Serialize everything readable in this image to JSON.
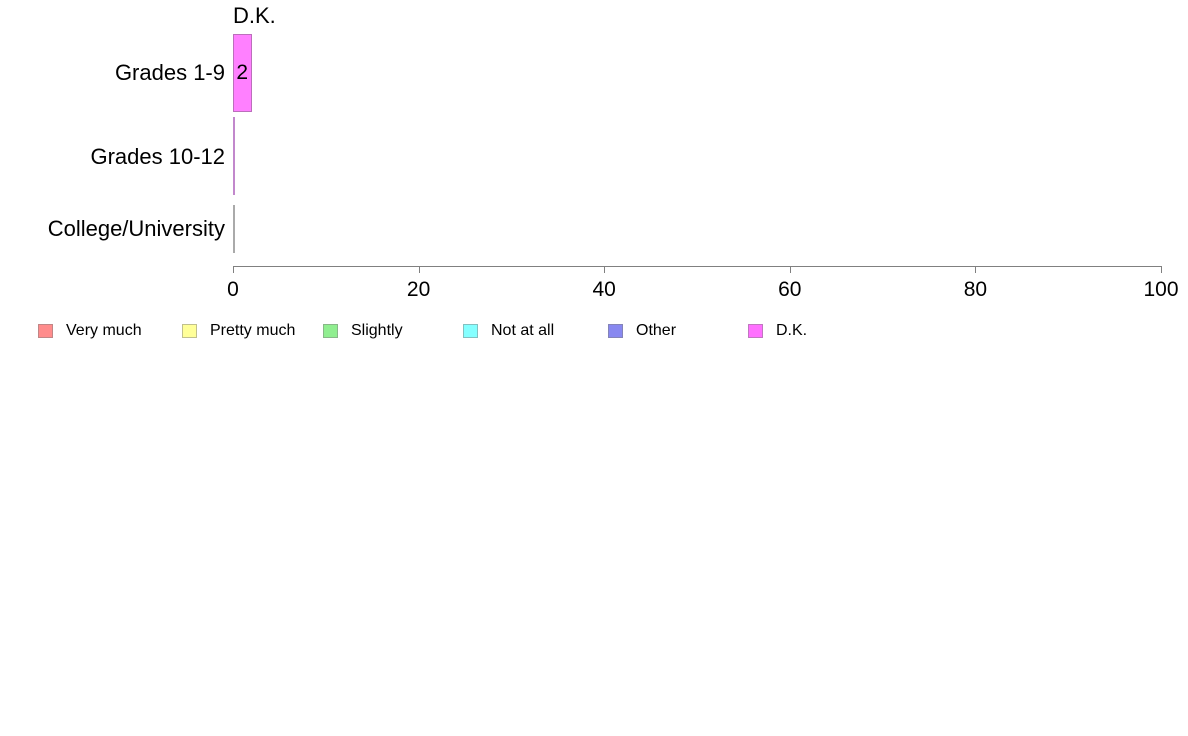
{
  "chart_data": {
    "type": "bar",
    "orientation": "horizontal",
    "title": "D.K.",
    "categories": [
      "Grades 1-9",
      "Grades 10-12",
      "College/University"
    ],
    "values": [
      2,
      0,
      0
    ],
    "value_labels": [
      "2",
      "",
      ""
    ],
    "xlabel": "",
    "ylabel": "",
    "xlim": [
      0,
      100
    ],
    "x_ticks": [
      0,
      20,
      40,
      60,
      80,
      100
    ],
    "grid": false,
    "legend_position": "bottom",
    "colors": {
      "bar_fill": "#ff80ff",
      "bar_border": "#bb6fbb",
      "zero_bar_lines": [
        "",
        "#c288cc",
        "#aaaaaa"
      ],
      "axis": "#808080",
      "text": "#000000",
      "background": "#ffffff"
    },
    "legend": [
      {
        "label": "Very much",
        "color": "#ff8c8c"
      },
      {
        "label": "Pretty much",
        "color": "#ffff99"
      },
      {
        "label": "Slightly",
        "color": "#90ee90"
      },
      {
        "label": "Not at all",
        "color": "#85ffff"
      },
      {
        "label": "Other",
        "color": "#8888f0"
      },
      {
        "label": "D.K.",
        "color": "#ff70ff"
      }
    ]
  }
}
